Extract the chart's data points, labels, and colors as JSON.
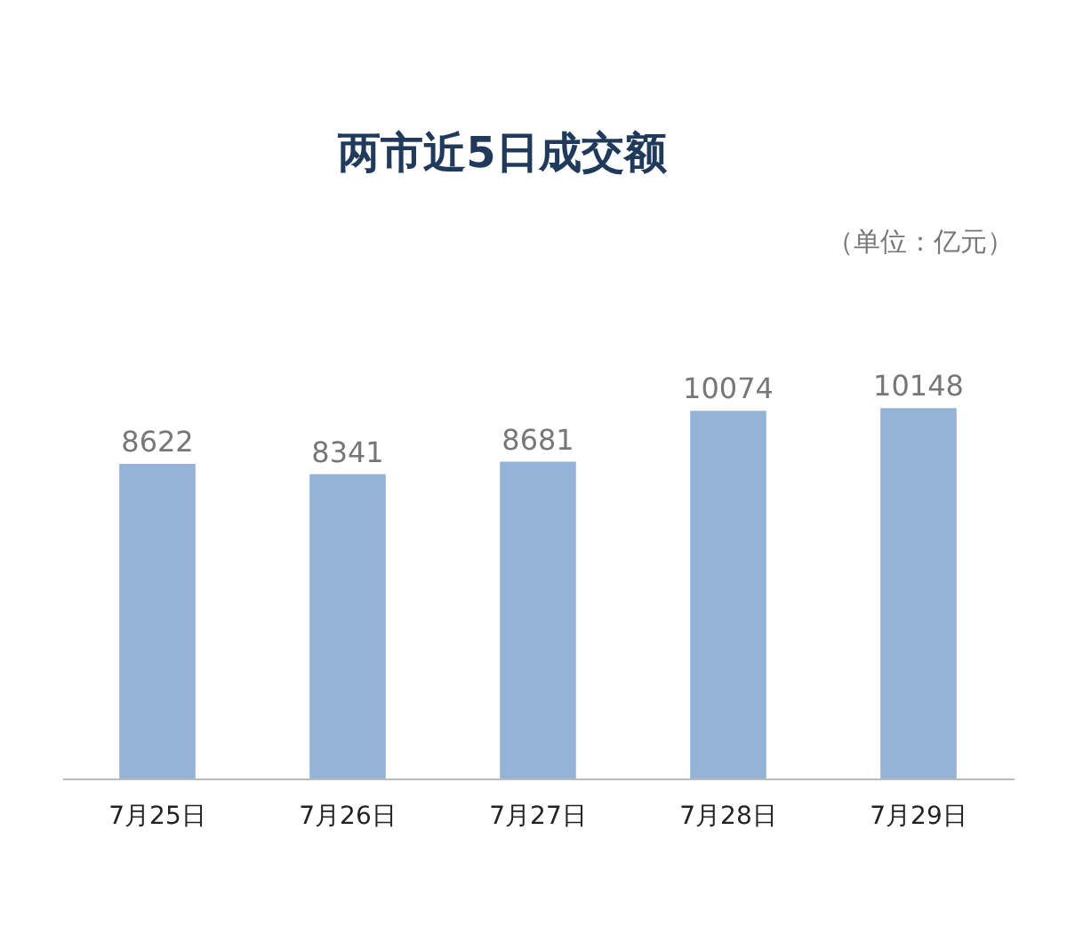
{
  "chart_data": {
    "type": "bar",
    "title": "两市近5日成交额",
    "annotations": [
      "（单位：亿元）"
    ],
    "categories": [
      "7月25日",
      "7月26日",
      "7月27日",
      "7月28日",
      "7月29日"
    ],
    "values": [
      8622,
      8341,
      8681,
      10074,
      10148
    ],
    "color": "#95b3d7",
    "data_labels": true,
    "grid": false
  }
}
